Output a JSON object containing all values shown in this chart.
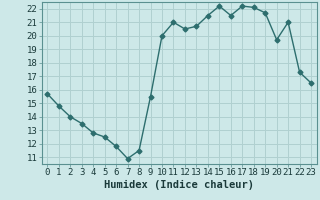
{
  "x": [
    0,
    1,
    2,
    3,
    4,
    5,
    6,
    7,
    8,
    9,
    10,
    11,
    12,
    13,
    14,
    15,
    16,
    17,
    18,
    19,
    20,
    21,
    22,
    23
  ],
  "y": [
    15.7,
    14.8,
    14.0,
    13.5,
    12.8,
    12.5,
    11.8,
    10.9,
    11.5,
    15.5,
    20.0,
    21.0,
    20.5,
    20.7,
    21.5,
    22.2,
    21.5,
    22.2,
    22.1,
    21.7,
    19.7,
    21.0,
    17.3,
    16.5
  ],
  "line_color": "#2d6e6e",
  "marker": "D",
  "marker_size": 2.5,
  "bg_color": "#cde8e8",
  "grid_color": "#b0d0d0",
  "xlabel": "Humidex (Indice chaleur)",
  "xlim": [
    -0.5,
    23.5
  ],
  "ylim": [
    10.5,
    22.5
  ],
  "yticks": [
    11,
    12,
    13,
    14,
    15,
    16,
    17,
    18,
    19,
    20,
    21,
    22
  ],
  "xticks": [
    0,
    1,
    2,
    3,
    4,
    5,
    6,
    7,
    8,
    9,
    10,
    11,
    12,
    13,
    14,
    15,
    16,
    17,
    18,
    19,
    20,
    21,
    22,
    23
  ],
  "xlabel_fontsize": 7.5,
  "tick_fontsize": 6.5,
  "linewidth": 1.0
}
